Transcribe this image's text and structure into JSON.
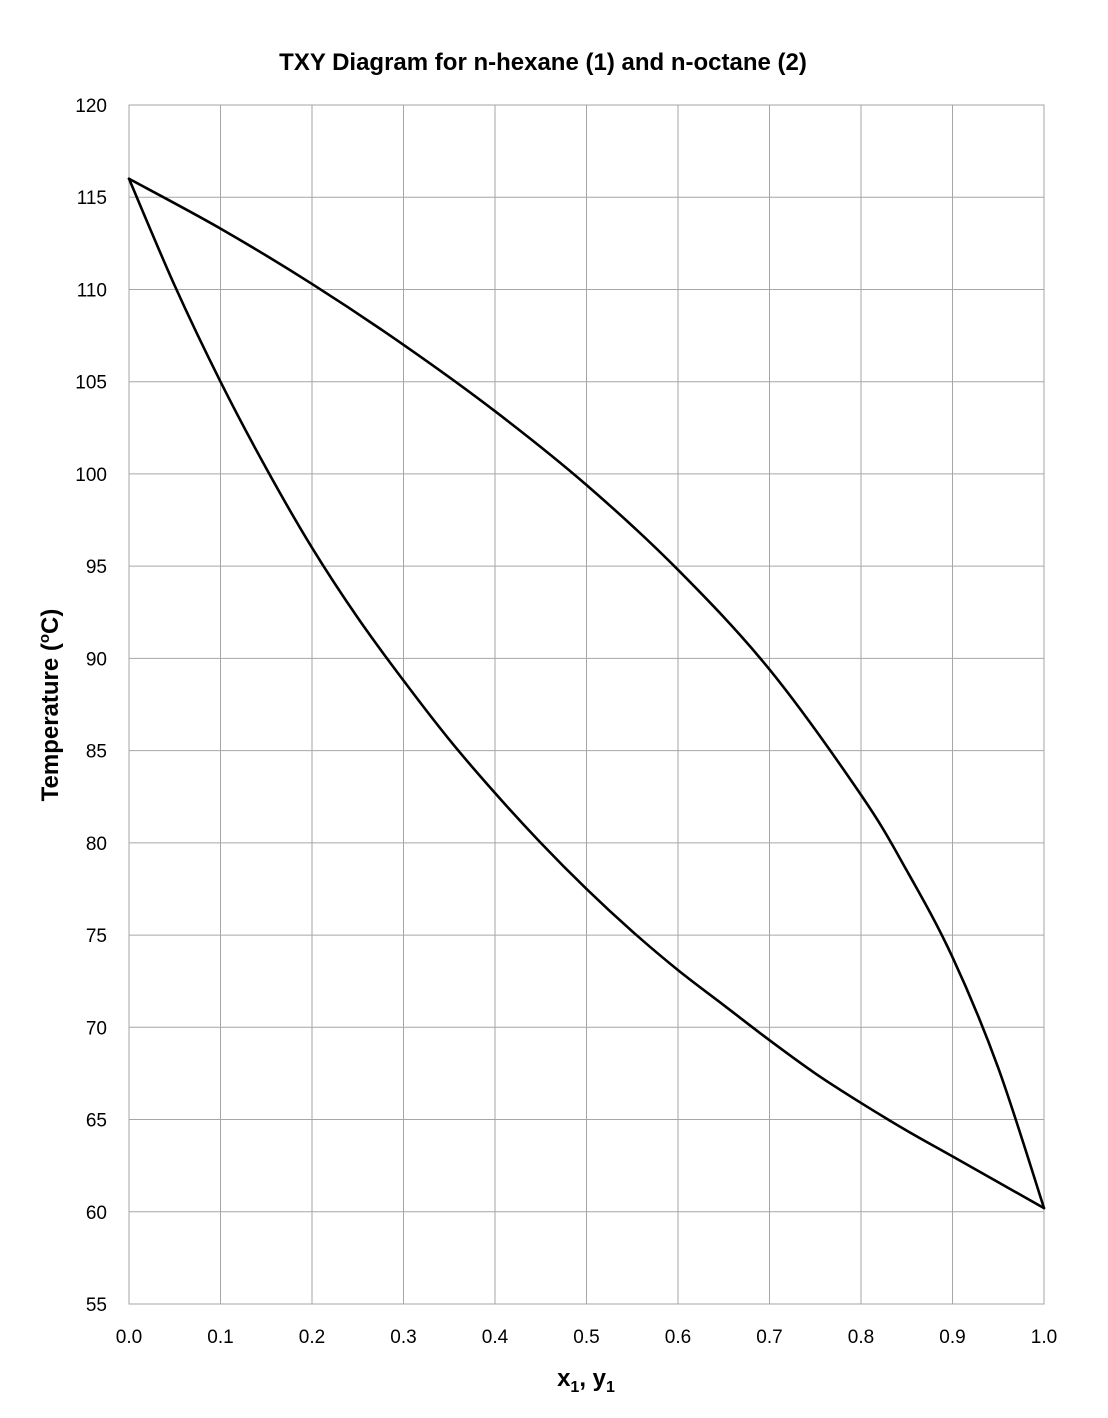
{
  "chart_data": {
    "type": "line",
    "title": "TXY Diagram for n-hexane (1) and n-octane (2)",
    "xlabel": {
      "base": "x",
      "sub": "1",
      "sep": ", ",
      "base2": "y",
      "sub2": "1"
    },
    "ylabel": {
      "pre": "Temperature (",
      "sup": "o",
      "post": "C)"
    },
    "xlim": [
      0,
      1
    ],
    "ylim": [
      55,
      120
    ],
    "x_ticks": [
      "0.0",
      "0.1",
      "0.2",
      "0.3",
      "0.4",
      "0.5",
      "0.6",
      "0.7",
      "0.8",
      "0.9",
      "1.0"
    ],
    "y_ticks": [
      "55",
      "60",
      "65",
      "70",
      "75",
      "80",
      "85",
      "90",
      "95",
      "100",
      "105",
      "110",
      "115",
      "120"
    ],
    "grid": true,
    "legend": "none",
    "line_color": "#000000",
    "grid_color": "#a6a6a6",
    "series": [
      {
        "x": [
          0.0,
          0.05,
          0.1,
          0.15,
          0.2,
          0.25,
          0.3,
          0.35,
          0.4,
          0.45,
          0.5,
          0.55,
          0.6,
          0.65,
          0.7,
          0.75,
          0.8,
          0.85,
          0.9,
          0.95,
          1.0
        ],
        "y": [
          116.0,
          110.2,
          105.0,
          100.3,
          96.0,
          92.2,
          88.8,
          85.6,
          82.7,
          80.0,
          77.5,
          75.2,
          73.1,
          71.2,
          69.3,
          67.5,
          65.9,
          64.4,
          63.0,
          61.6,
          60.2
        ]
      },
      {
        "x": [
          0.0,
          0.1,
          0.2,
          0.3,
          0.4,
          0.5,
          0.6,
          0.7,
          0.8,
          0.85,
          0.9,
          0.95,
          1.0
        ],
        "y": [
          116.0,
          113.3,
          110.3,
          107.0,
          103.4,
          99.4,
          94.8,
          89.4,
          82.6,
          78.5,
          73.8,
          67.8,
          60.2
        ]
      }
    ]
  }
}
